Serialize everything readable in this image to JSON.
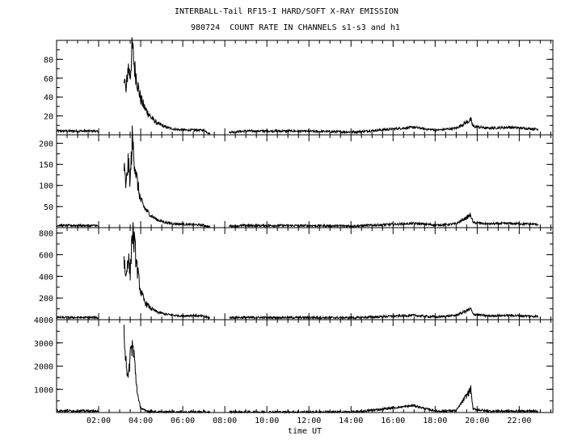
{
  "title": "INTERBALL-Tail RF15-I HARD/SOFT X-RAY EMISSION",
  "subtitle": "980724  COUNT RATE IN CHANNELS s1-s3 and h1",
  "chart_data": [
    {
      "type": "line",
      "xlabel": "time UT",
      "xticks": [
        "02:00",
        "04:00",
        "06:00",
        "08:00",
        "10:00",
        "12:00",
        "14:00",
        "16:00",
        "18:00",
        "20:00",
        "22:00"
      ],
      "ylim": [
        0,
        100
      ],
      "yticks": [
        20,
        40,
        60,
        80
      ],
      "x": [
        0.0,
        1.9,
        2.0,
        3.2,
        3.3,
        3.4,
        3.5,
        3.6,
        3.7,
        3.8,
        3.9,
        4.0,
        4.2,
        4.5,
        4.8,
        5.2,
        5.6,
        6.0,
        6.5,
        7.0,
        7.3,
        8.3,
        9.0,
        9.7,
        10.3,
        11.0,
        14.2,
        17.0,
        17.6,
        18.1,
        19.0,
        19.7,
        19.8,
        20.5,
        21.5,
        22.9
      ],
      "y": [
        4,
        4,
        2,
        68,
        44,
        73,
        62,
        94,
        72,
        60,
        48,
        38,
        28,
        18,
        12,
        8,
        6,
        5,
        5,
        5,
        1,
        3,
        4,
        4,
        4,
        4,
        3,
        8,
        6,
        5,
        7,
        16,
        9,
        7,
        8,
        6
      ]
    },
    {
      "type": "line",
      "ylim": [
        0,
        220
      ],
      "yticks": [
        50,
        100,
        150,
        200
      ],
      "x": [
        0.0,
        1.9,
        2.0,
        3.2,
        3.3,
        3.4,
        3.5,
        3.6,
        3.7,
        3.8,
        3.9,
        4.0,
        4.2,
        4.5,
        4.8,
        5.2,
        5.6,
        6.0,
        6.5,
        7.0,
        7.3,
        8.3,
        9.0,
        9.7,
        10.3,
        11.0,
        14.2,
        17.0,
        17.6,
        18.1,
        19.0,
        19.7,
        19.8,
        20.5,
        21.5,
        22.9
      ],
      "y": [
        5,
        5,
        2,
        145,
        95,
        155,
        110,
        210,
        160,
        120,
        90,
        65,
        45,
        28,
        18,
        12,
        9,
        8,
        7,
        6,
        1,
        4,
        5,
        5,
        5,
        5,
        4,
        10,
        8,
        6,
        9,
        30,
        12,
        9,
        10,
        8
      ]
    },
    {
      "type": "line",
      "ylim": [
        0,
        850
      ],
      "yticks": [
        200,
        400,
        600,
        800
      ],
      "x": [
        0.0,
        1.9,
        2.0,
        3.2,
        3.3,
        3.4,
        3.5,
        3.6,
        3.7,
        3.8,
        3.9,
        4.0,
        4.2,
        4.5,
        4.8,
        5.2,
        5.6,
        6.0,
        6.5,
        7.0,
        7.3,
        8.3,
        9.0,
        9.7,
        10.3,
        11.0,
        14.2,
        17.0,
        17.6,
        18.1,
        19.0,
        19.7,
        19.8,
        20.5,
        21.5,
        22.9
      ],
      "y": [
        20,
        20,
        15,
        580,
        380,
        600,
        420,
        820,
        700,
        520,
        380,
        260,
        160,
        100,
        70,
        50,
        40,
        35,
        40,
        30,
        15,
        20,
        20,
        20,
        20,
        20,
        18,
        40,
        30,
        25,
        40,
        100,
        50,
        35,
        40,
        30
      ]
    },
    {
      "type": "line",
      "ylim": [
        0,
        4000
      ],
      "yticks": [
        1000,
        2000,
        3000,
        4000
      ],
      "x": [
        0.0,
        1.9,
        2.0,
        3.2,
        3.3,
        3.4,
        3.5,
        3.6,
        3.7,
        3.8,
        3.9,
        4.0,
        4.2,
        4.5,
        4.8,
        5.2,
        5.6,
        6.0,
        6.5,
        7.0,
        7.3,
        8.3,
        9.0,
        9.7,
        10.3,
        11.0,
        14.2,
        17.0,
        17.6,
        18.1,
        19.0,
        19.7,
        19.8,
        20.5,
        21.5,
        22.9
      ],
      "y": [
        80,
        60,
        20,
        3600,
        2400,
        1300,
        2500,
        2950,
        2300,
        1200,
        500,
        200,
        80,
        40,
        30,
        20,
        20,
        20,
        20,
        20,
        10,
        20,
        20,
        20,
        20,
        20,
        20,
        300,
        150,
        60,
        80,
        1000,
        150,
        60,
        60,
        60
      ]
    }
  ]
}
